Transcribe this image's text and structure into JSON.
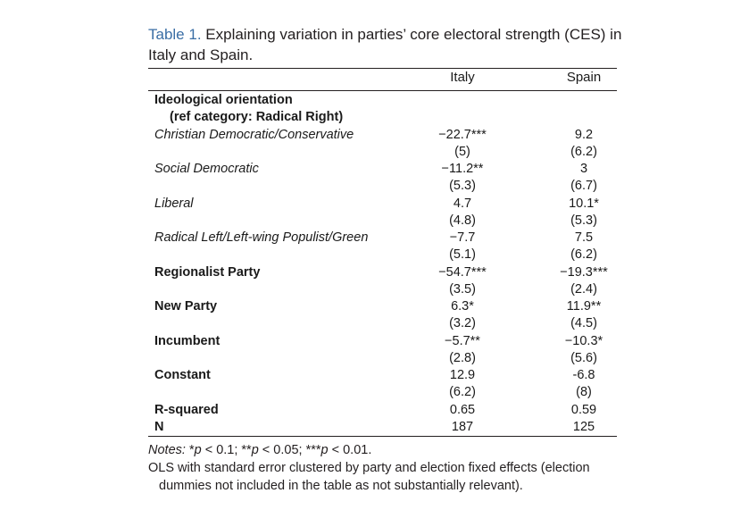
{
  "caption": {
    "label": "Table 1.",
    "text": " Explaining variation in parties’ core electoral strength (CES) in Italy and Spain."
  },
  "columns": [
    "Italy",
    "Spain"
  ],
  "rows": [
    {
      "label": "Ideological orientation",
      "style": "bold",
      "italy": "",
      "spain": ""
    },
    {
      "label": "(ref category: Radical Right)",
      "style": "bold-indent",
      "italy": "",
      "spain": ""
    },
    {
      "label": "Christian Democratic/Conservative",
      "style": "italic",
      "italy": "−22.7***",
      "spain": "9.2"
    },
    {
      "label": "",
      "style": "plain",
      "italy": "(5)",
      "spain": "(6.2)"
    },
    {
      "label": "Social Democratic",
      "style": "italic",
      "italy": "−11.2**",
      "spain": "3"
    },
    {
      "label": "",
      "style": "plain",
      "italy": "(5.3)",
      "spain": "(6.7)"
    },
    {
      "label": "Liberal",
      "style": "italic",
      "italy": "4.7",
      "spain": "10.1*"
    },
    {
      "label": "",
      "style": "plain",
      "italy": "(4.8)",
      "spain": "(5.3)"
    },
    {
      "label": "Radical Left/Left-wing Populist/Green",
      "style": "italic",
      "italy": "−7.7",
      "spain": "7.5"
    },
    {
      "label": "",
      "style": "plain",
      "italy": "(5.1)",
      "spain": "(6.2)"
    },
    {
      "label": "Regionalist Party",
      "style": "bold",
      "italy": "−54.7***",
      "spain": "−19.3***"
    },
    {
      "label": "",
      "style": "plain",
      "italy": "(3.5)",
      "spain": "(2.4)"
    },
    {
      "label": "New Party",
      "style": "bold",
      "italy": "6.3*",
      "spain": "11.9**"
    },
    {
      "label": "",
      "style": "plain",
      "italy": "(3.2)",
      "spain": "(4.5)"
    },
    {
      "label": "Incumbent",
      "style": "bold",
      "italy": "−5.7**",
      "spain": "−10.3*"
    },
    {
      "label": "",
      "style": "plain",
      "italy": "(2.8)",
      "spain": "(5.6)"
    },
    {
      "label": "Constant",
      "style": "bold",
      "italy": "12.9",
      "spain": "-6.8"
    },
    {
      "label": "",
      "style": "plain",
      "italy": "(6.2)",
      "spain": "(8)"
    },
    {
      "label": "R-squared",
      "style": "bold",
      "italy": "0.65",
      "spain": "0.59"
    },
    {
      "label": "N",
      "style": "bold",
      "italy": "187",
      "spain": "125"
    }
  ],
  "notes": {
    "line1": "Notes: *p < 0.1; **p < 0.05; ***p < 0.01.",
    "line2a": "OLS with standard error clustered by party and election fixed effects (election",
    "line2b": "dummies not included in the table as not substantially relevant)."
  }
}
